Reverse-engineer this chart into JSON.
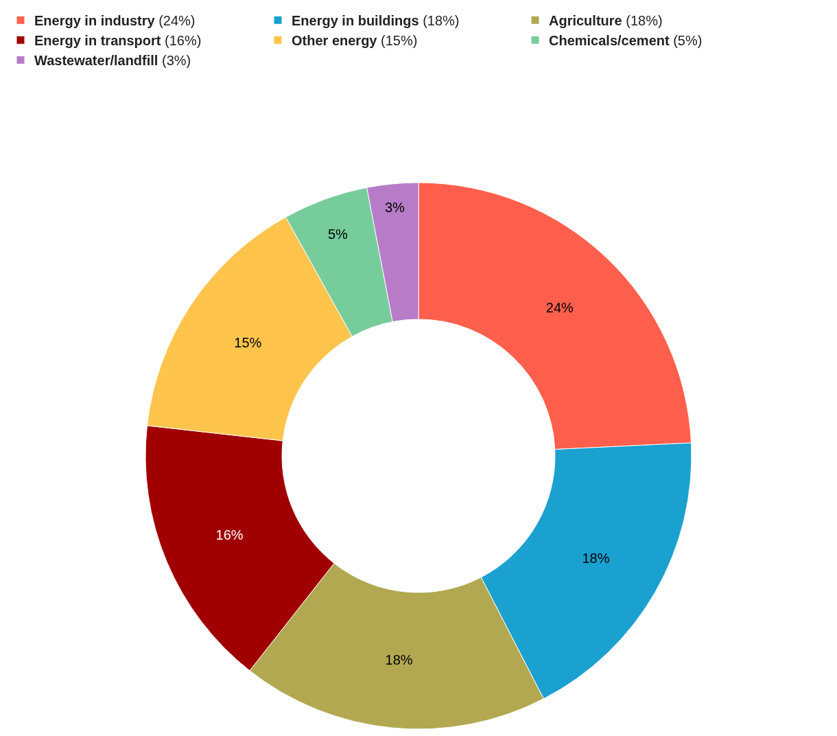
{
  "chart_data": {
    "type": "donut",
    "categories": [
      "Energy in industry (24%)",
      "Energy in buildings (18%)",
      "Agriculture (18%)",
      "Energy in transport (16%)",
      "Other energy (15%)",
      "Chemicals/cement (5%)",
      "Wastewater/landfill (3%)"
    ],
    "values": [
      24,
      18,
      18,
      16,
      15,
      5,
      3
    ],
    "value_labels": [
      "24%",
      "18%",
      "18%",
      "16%",
      "15%",
      "5%",
      "3%"
    ],
    "colors": [
      "#ff5f4c",
      "#1aa1cf",
      "#b1a851",
      "#a00000",
      "#ffc44c",
      "#77cc9c",
      "#b77bc8"
    ],
    "legend": "top left"
  }
}
